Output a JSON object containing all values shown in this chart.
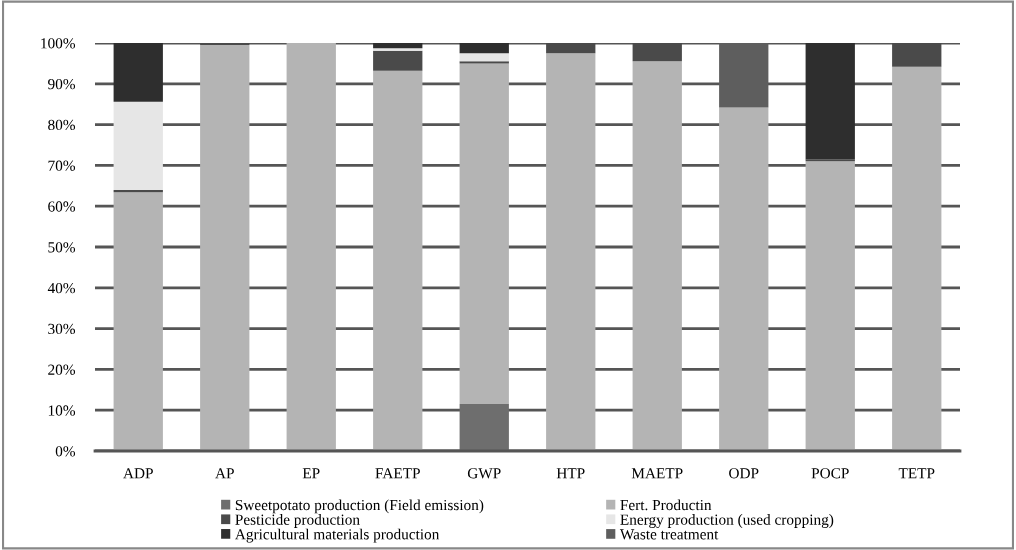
{
  "chart_data": {
    "type": "bar",
    "stacked": true,
    "categories": [
      "ADP",
      "AP",
      "EP",
      "FAETP",
      "GWP",
      "HTP",
      "MAETP",
      "ODP",
      "POCP",
      "TETP"
    ],
    "series": [
      {
        "name": "Sweetpotato production (Field emission)",
        "color": "#6e6e6e",
        "values": [
          0,
          0,
          0,
          0,
          11.5,
          0,
          0,
          0,
          0,
          0
        ]
      },
      {
        "name": "Fert. Productin",
        "color": "#b4b4b4",
        "values": [
          63.4,
          99.5,
          100,
          93.2,
          83.5,
          97.5,
          95.5,
          84.2,
          71.0,
          94.2
        ]
      },
      {
        "name": "Pesticide production",
        "color": "#4a4a4a",
        "values": [
          0.6,
          0.5,
          0,
          4.9,
          0.5,
          2.5,
          4.5,
          0,
          0.5,
          5.8
        ]
      },
      {
        "name": "Energy production (used cropping)",
        "color": "#e6e6e6",
        "values": [
          21.6,
          0,
          0,
          0.6,
          2.0,
          0,
          0,
          0,
          0,
          0
        ]
      },
      {
        "name": "Agricultural materials production",
        "color": "#2e2e2e",
        "values": [
          14.4,
          0,
          0,
          1.3,
          2.5,
          0,
          0,
          0,
          28.5,
          0
        ]
      },
      {
        "name": "Waste treatment",
        "color": "#5e5e5e",
        "values": [
          0,
          0,
          0,
          0,
          0,
          0,
          0,
          15.8,
          0,
          0
        ]
      }
    ],
    "ylim": [
      0,
      100
    ],
    "yticks": [
      {
        "value": 0,
        "label": "0%"
      },
      {
        "value": 10,
        "label": "10%"
      },
      {
        "value": 20,
        "label": "20%"
      },
      {
        "value": 30,
        "label": "30%"
      },
      {
        "value": 40,
        "label": "40%"
      },
      {
        "value": 50,
        "label": "50%"
      },
      {
        "value": 60,
        "label": "60%"
      },
      {
        "value": 70,
        "label": "70%"
      },
      {
        "value": 80,
        "label": "80%"
      },
      {
        "value": 90,
        "label": "90%"
      },
      {
        "value": 100,
        "label": "100%"
      }
    ],
    "grid": "y",
    "legend": "bottom"
  }
}
